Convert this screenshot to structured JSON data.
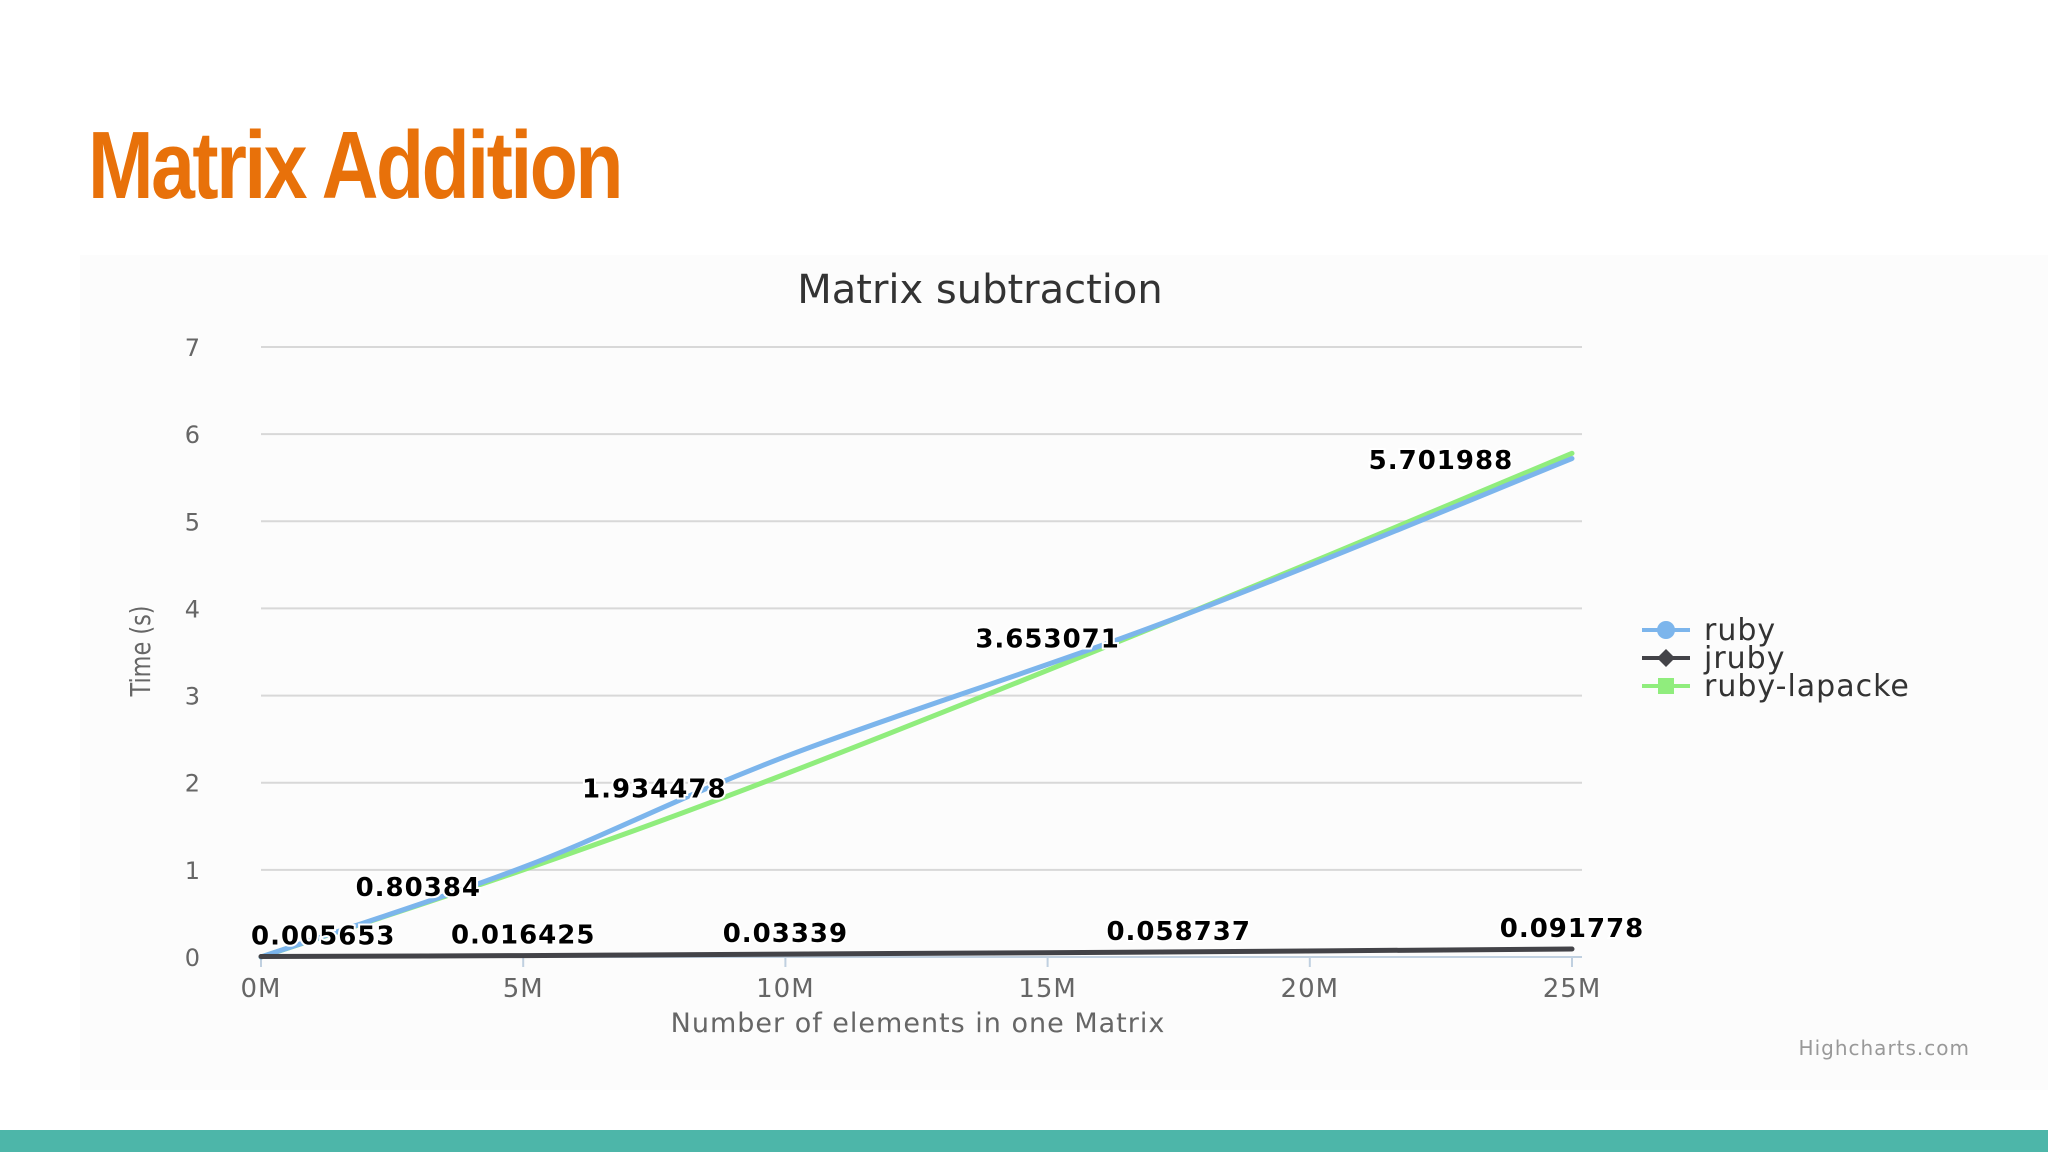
{
  "slide": {
    "title": "Matrix Addition",
    "title_color": "#E8710A",
    "bar_color": "#4DB6A9"
  },
  "chart_data": {
    "type": "line",
    "title": "Matrix subtraction",
    "xlabel": "Number of elements in one Matrix",
    "ylabel": "Time (s)",
    "xlim": [
      0,
      25
    ],
    "ylim": [
      0,
      7
    ],
    "x_ticks": [
      "0M",
      "5M",
      "10M",
      "15M",
      "20M",
      "25M"
    ],
    "y_ticks": [
      "0",
      "1",
      "2",
      "3",
      "4",
      "5",
      "6",
      "7"
    ],
    "grid": true,
    "legend_position": "right",
    "credit": "Highcharts.com",
    "series": [
      {
        "name": "ruby",
        "color": "#7CB5EC",
        "marker": "circle",
        "x": [
          0,
          5,
          10,
          17.5,
          25
        ],
        "y": [
          0.0,
          1.03,
          2.3,
          3.9,
          5.72
        ],
        "labels": []
      },
      {
        "name": "jruby",
        "color": "#434348",
        "marker": "diamond",
        "x": [
          0,
          5,
          10,
          17.5,
          25
        ],
        "y": [
          0.005653,
          0.016425,
          0.03339,
          0.058737,
          0.091778
        ],
        "labels": [
          "0.005653",
          "0.016425",
          "0.03339",
          "0.058737",
          "0.091778"
        ]
      },
      {
        "name": "ruby-lapacke",
        "color": "#90ED7D",
        "marker": "square",
        "x": [
          0,
          5,
          10,
          17.5,
          25
        ],
        "y": [
          0.0,
          1.0,
          2.1,
          3.9,
          5.78
        ],
        "labels": []
      }
    ],
    "data_labels": [
      {
        "x": 3,
        "y": 0.80384,
        "text": "0.80384"
      },
      {
        "x": 7.5,
        "y": 1.934478,
        "text": "1.934478"
      },
      {
        "x": 15,
        "y": 3.653071,
        "text": "3.653071"
      },
      {
        "x": 22.5,
        "y": 5.701988,
        "text": "5.701988"
      }
    ]
  }
}
